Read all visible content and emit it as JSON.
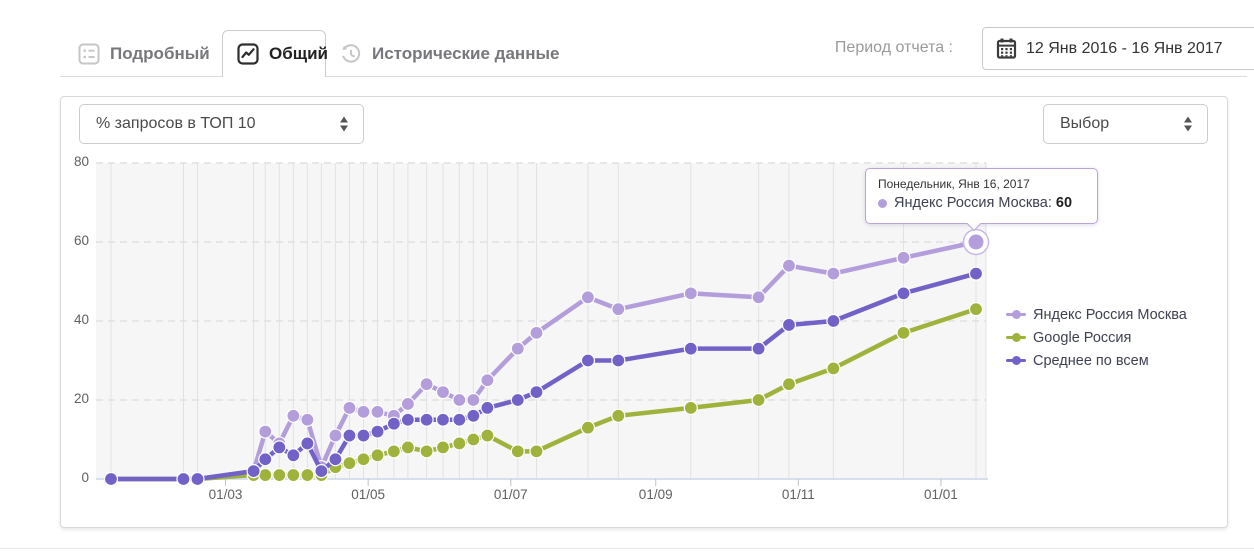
{
  "tabs": [
    {
      "label": "Подробный",
      "icon": "report-icon",
      "active": false
    },
    {
      "label": "Общий",
      "icon": "chart-icon",
      "active": true
    },
    {
      "label": "Исторические данные",
      "icon": "history-icon",
      "active": false
    }
  ],
  "period": {
    "label": "Период отчета :",
    "value": "12 Янв 2016 - 16 Янв 2017",
    "icon": "calendar-icon"
  },
  "controls": {
    "metric_select": "% запросов в ТОП 10",
    "right_select": "Выбор"
  },
  "chart_data": {
    "type": "line",
    "title": "",
    "xlabel": "",
    "ylabel": "",
    "ylim": [
      0,
      80
    ],
    "y_ticks": [
      0,
      20,
      40,
      60,
      80
    ],
    "x_ticks": [
      {
        "label": "01/03",
        "day": 49
      },
      {
        "label": "01/05",
        "day": 110
      },
      {
        "label": "01/07",
        "day": 171
      },
      {
        "label": "01/09",
        "day": 233
      },
      {
        "label": "01/11",
        "day": 294
      },
      {
        "label": "01/01",
        "day": 355
      }
    ],
    "grid": {
      "horizontal": "dashed",
      "vertical": "solid line at every data point",
      "plot_background": "#f6f6f6"
    },
    "legend_position": "right",
    "days": [
      0,
      31,
      37,
      61,
      66,
      72,
      78,
      84,
      90,
      96,
      102,
      108,
      114,
      121,
      127,
      135,
      142,
      149,
      155,
      161,
      174,
      182,
      204,
      217,
      248,
      277,
      290,
      309,
      339,
      370
    ],
    "series": [
      {
        "name": "Яндекс Россия Москва",
        "color": "#b39ddb",
        "values": [
          0,
          0,
          0,
          2,
          12,
          9,
          16,
          15,
          3,
          11,
          18,
          17,
          17,
          16,
          19,
          24,
          22,
          20,
          20,
          25,
          33,
          37,
          46,
          43,
          47,
          46,
          54,
          52,
          56,
          60
        ]
      },
      {
        "name": "Google Россия",
        "color": "#9fb23b",
        "values": [
          0,
          0,
          0,
          1,
          1,
          1,
          1,
          1,
          1,
          3,
          4,
          5,
          6,
          7,
          8,
          7,
          8,
          9,
          10,
          11,
          7,
          7,
          13,
          16,
          18,
          20,
          24,
          28,
          37,
          43
        ]
      },
      {
        "name": "Среднее по всем",
        "color": "#7262c8",
        "values": [
          0,
          0,
          0,
          2,
          5,
          8,
          6,
          9,
          2,
          5,
          11,
          11,
          12,
          14,
          15,
          15,
          15,
          15,
          16,
          18,
          20,
          22,
          30,
          30,
          33,
          33,
          39,
          40,
          47,
          52
        ]
      }
    ],
    "highlight": {
      "series_index": 0,
      "point_index": 29,
      "value": 60
    },
    "tooltip": {
      "title": "Понедельник, Янв 16, 2017",
      "series_label": "Яндекс Россия Москва:",
      "value": "60",
      "marker_color": "#b39ddb"
    },
    "axis_colors": {
      "baseline": "#ccd6eb",
      "grid_dashed": "#e0e0e0",
      "grid_vertical": "#e2e2e2",
      "tick": "#c0c0c0",
      "label": "#606060"
    }
  }
}
